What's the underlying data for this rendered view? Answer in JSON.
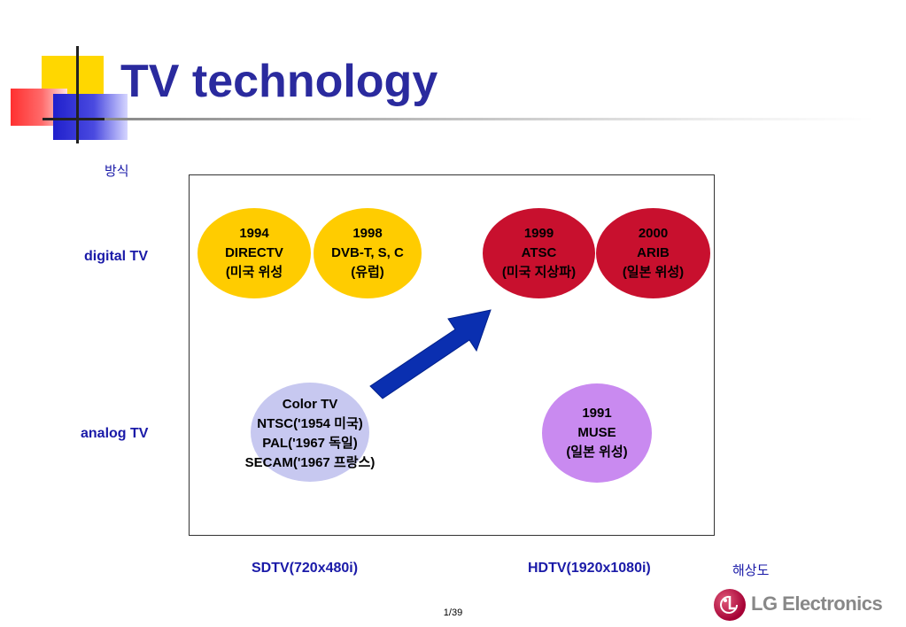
{
  "title": "TV technology",
  "y_axis_label": "방식",
  "row_labels": {
    "digital": "digital TV",
    "analog": "analog TV"
  },
  "x_axis": {
    "sdtv": "SDTV(720x480i)",
    "hdtv": "HDTV(1920x1080i)",
    "label": "해상도"
  },
  "ovals": {
    "directv": {
      "line1": "1994",
      "line2": "DIRECTV",
      "line3": "(미국 위성"
    },
    "dvb": {
      "line1": "1998",
      "line2": "DVB-T, S, C",
      "line3": "(유럽)"
    },
    "atsc": {
      "line1": "1999",
      "line2": "ATSC",
      "line3": "(미국 지상파)"
    },
    "arib": {
      "line1": "2000",
      "line2": "ARIB",
      "line3": "(일본 위성)"
    },
    "color_tv": {
      "line1": "Color TV",
      "line2": "NTSC('1954 미국)",
      "line3": "PAL('1967 독일)",
      "line4": "SECAM('1967 프랑스)"
    },
    "muse": {
      "line1": "1991",
      "line2": "MUSE",
      "line3": "(일본 위성)"
    }
  },
  "colors": {
    "title": "#2a2a9e",
    "yellow": "#ffcc00",
    "red": "#c8102e",
    "lavender": "#c7c8f0",
    "purple": "#c98af0",
    "arrow": "#0a2fb0"
  },
  "page_number": "1/39",
  "logo": {
    "text": "LG Electronics",
    "icon": "lg-face-logo"
  }
}
